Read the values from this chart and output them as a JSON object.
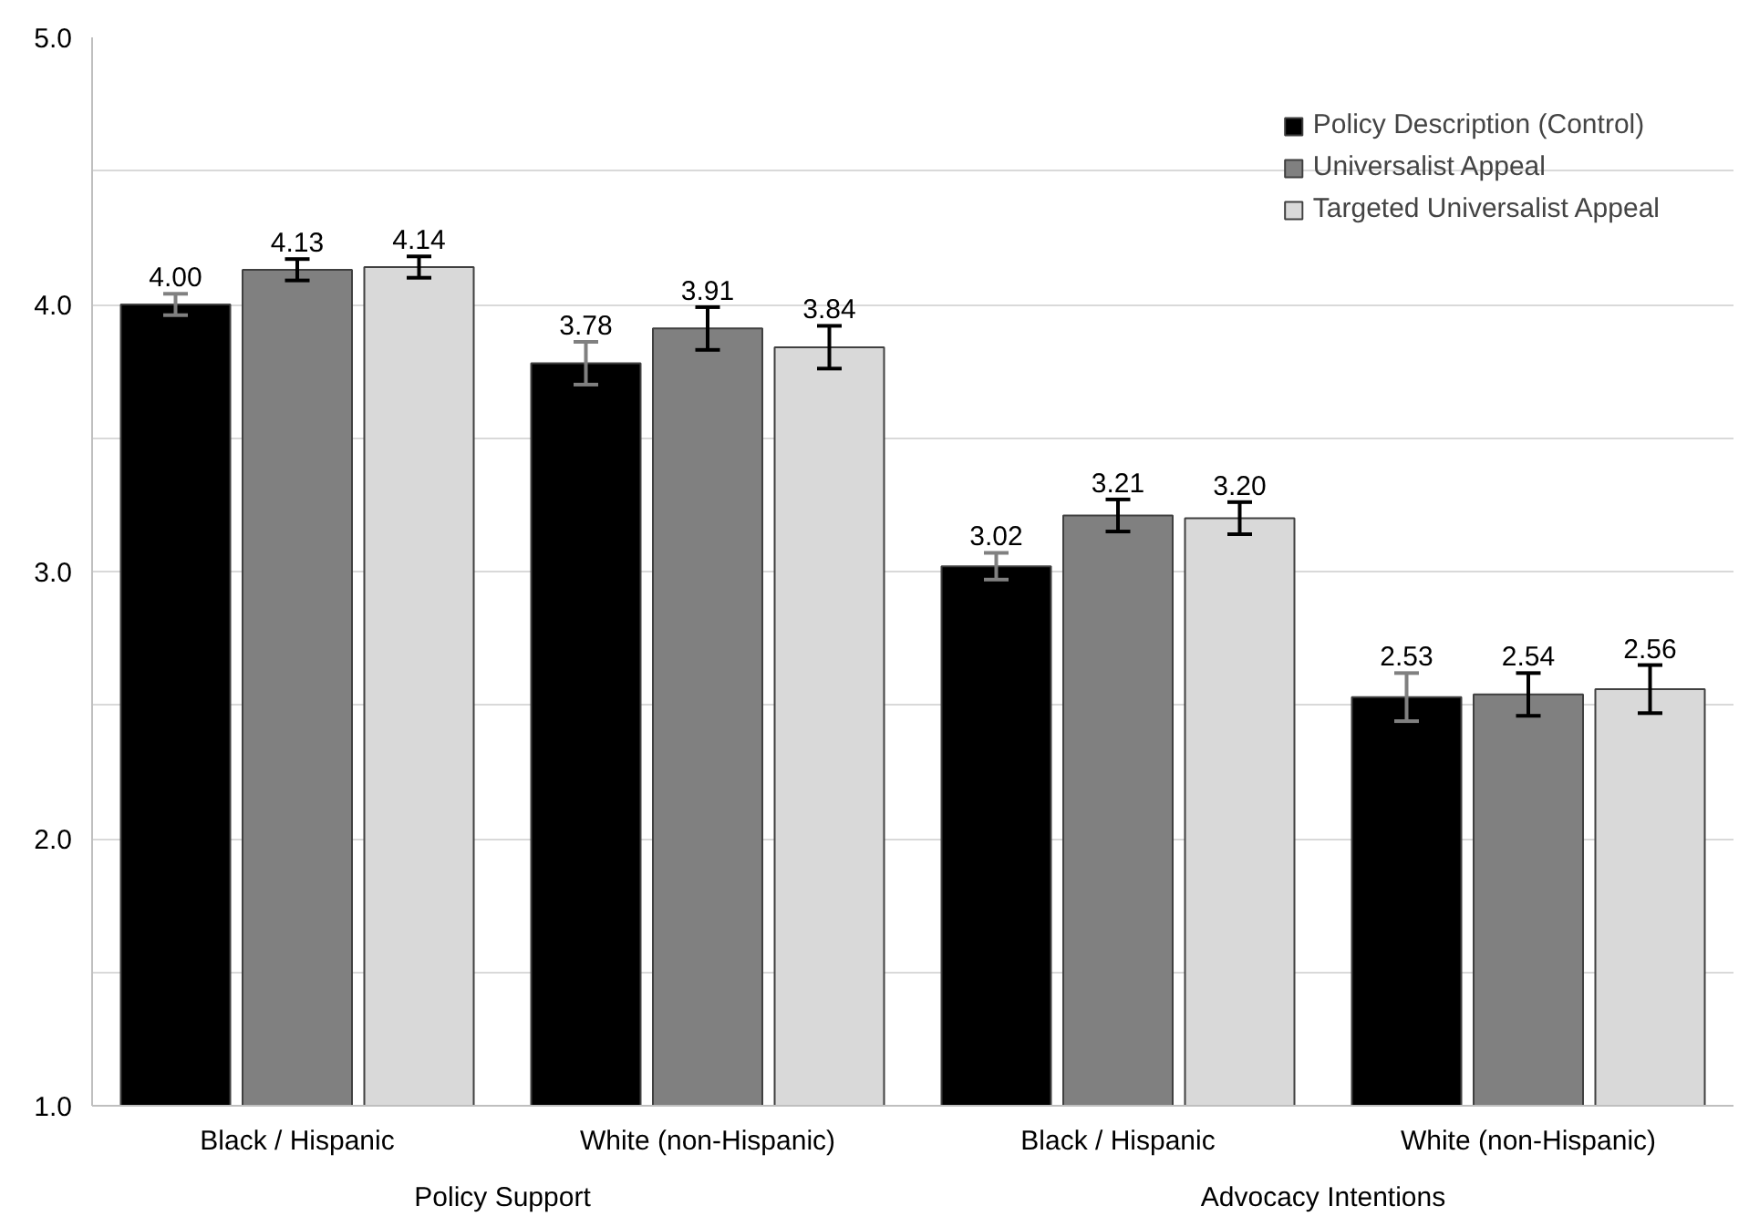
{
  "chart_data": {
    "type": "bar",
    "categories": [
      "Black / Hispanic",
      "White (non-Hispanic)",
      "Black / Hispanic",
      "White (non-Hispanic)"
    ],
    "annotations": [
      "Policy Support",
      "Advocacy Intentions"
    ],
    "series": [
      {
        "name": "Policy Description (Control)",
        "color": "#000000",
        "values": [
          4.0,
          3.78,
          3.02,
          2.53
        ],
        "value_labels": [
          "4.00",
          "3.78",
          "3.02",
          "2.53"
        ],
        "errors": [
          0.04,
          0.08,
          0.05,
          0.09
        ]
      },
      {
        "name": "Universalist Appeal",
        "color": "#808080",
        "values": [
          4.13,
          3.91,
          3.21,
          2.54
        ],
        "value_labels": [
          "4.13",
          "3.91",
          "3.21",
          "2.54"
        ],
        "errors": [
          0.04,
          0.08,
          0.06,
          0.08
        ]
      },
      {
        "name": "Targeted Universalist Appeal",
        "color": "#d9d9d9",
        "values": [
          4.14,
          3.84,
          3.2,
          2.56
        ],
        "value_labels": [
          "4.14",
          "3.84",
          "3.20",
          "2.56"
        ],
        "errors": [
          0.04,
          0.08,
          0.06,
          0.09
        ]
      }
    ],
    "ylim": [
      1,
      5
    ],
    "yticks": [
      {
        "value": 1,
        "label": "1.0"
      },
      {
        "value": 1.5,
        "label": null
      },
      {
        "value": 2,
        "label": "2.0"
      },
      {
        "value": 2.5,
        "label": null
      },
      {
        "value": 3,
        "label": "3.0"
      },
      {
        "value": 3.5,
        "label": null
      },
      {
        "value": 4,
        "label": "4.0"
      },
      {
        "value": 4.5,
        "label": null
      },
      {
        "value": 5,
        "label": "5.0"
      }
    ],
    "grid": "y",
    "legend": "top right"
  }
}
